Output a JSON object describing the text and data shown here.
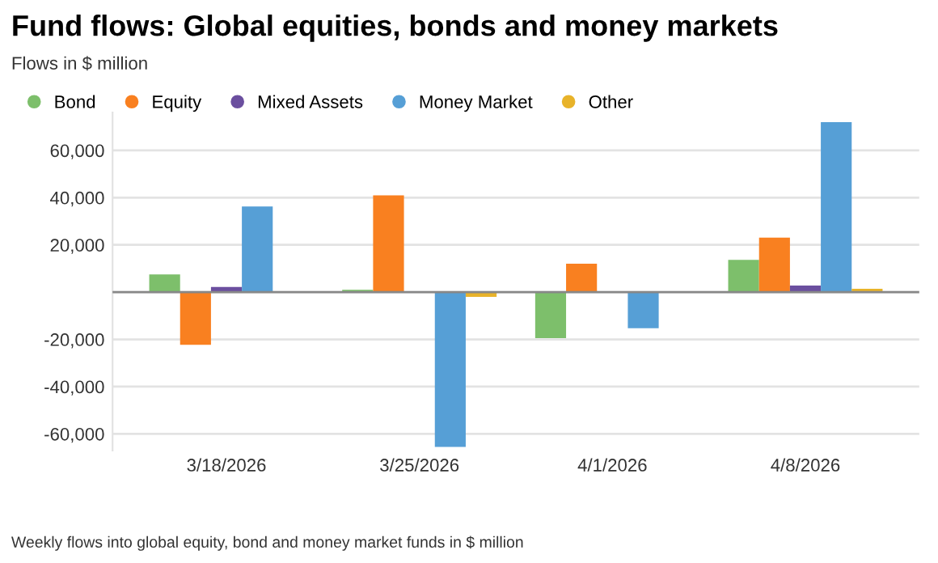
{
  "chart_data": {
    "type": "bar",
    "title": "Fund flows: Global equities, bonds and money markets",
    "subtitle": "Flows in $ million",
    "categories": [
      "3/18/2026",
      "3/25/2026",
      "4/1/2026",
      "4/8/2026"
    ],
    "series": [
      {
        "name": "Bond",
        "color": "#7dbf6b",
        "values": [
          7500,
          1000,
          -19500,
          13700
        ]
      },
      {
        "name": "Equity",
        "color": "#f98020",
        "values": [
          -22300,
          41000,
          12000,
          23100
        ]
      },
      {
        "name": "Mixed Assets",
        "color": "#6b4f9f",
        "values": [
          2200,
          300,
          null,
          2800
        ]
      },
      {
        "name": "Money Market",
        "color": "#569fd6",
        "values": [
          36300,
          -65500,
          -15300,
          72000
        ]
      },
      {
        "name": "Other",
        "color": "#e8b32a",
        "values": [
          300,
          -2000,
          300,
          1400
        ]
      }
    ],
    "ylim": [
      -67000,
      76000
    ],
    "yticks": [
      {
        "value": -60000,
        "label": "-60,000"
      },
      {
        "value": -40000,
        "label": "-40,000"
      },
      {
        "value": -20000,
        "label": "-20,000"
      },
      {
        "value": 0,
        "label": null
      },
      {
        "value": 20000,
        "label": "20,000"
      },
      {
        "value": 40000,
        "label": "40,000"
      },
      {
        "value": 60000,
        "label": "60,000"
      }
    ],
    "grid": "y",
    "legend": "top left",
    "marker": "circle",
    "annotations": [
      "Weekly flows into global equity, bond and money market funds in $ million"
    ]
  }
}
